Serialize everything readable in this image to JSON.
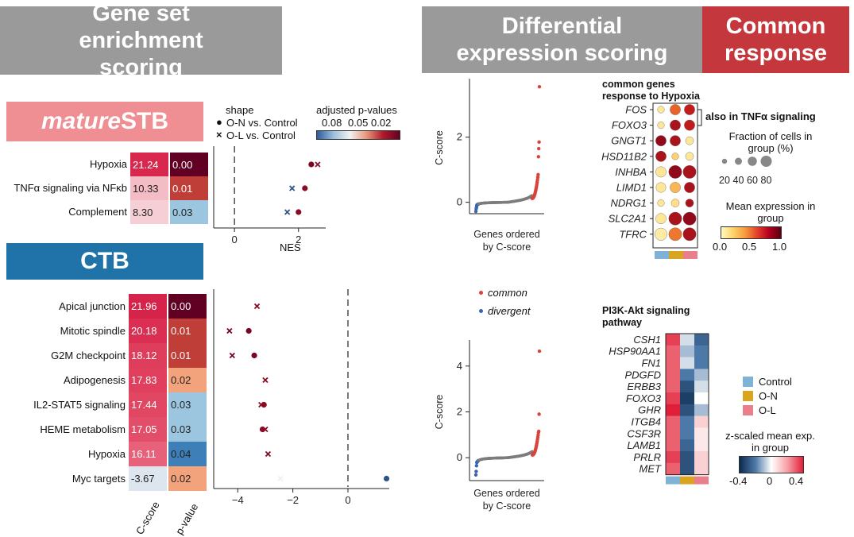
{
  "banners": {
    "gsea": "Gene set enrichment scoring",
    "diffexp": "Differential expression scoring",
    "common": "Common response",
    "mature_italic": "mature",
    "mature_rest": "STB",
    "ctb": "CTB"
  },
  "colors": {
    "banner_gray": "#9a9a9a",
    "banner_red": "#c4373c",
    "mature_pink": "#ef8e93",
    "ctb_blue": "#1f73a8",
    "common_dot": "#d9433b",
    "divergent_dot": "#3b63b0",
    "control": "#7fb3d5",
    "on": "#d9a520",
    "ol": "#e97f8a"
  },
  "legend_top": {
    "shape_title": "shape",
    "shape_items": [
      "O-N vs. Control",
      "O-L vs. Control"
    ],
    "pval_title": "adjusted p-values",
    "pval_ticks": [
      "0.08",
      "0.05",
      "0.02"
    ]
  },
  "chart_data": [
    {
      "type": "table",
      "name": "matureSTB heatmap",
      "rows": [
        "Hypoxia",
        "TNFα signaling via NFκb",
        "Complement"
      ],
      "c_score": [
        21.24,
        10.33,
        8.3
      ],
      "c_score_text": [
        "21.24",
        "10.33",
        "8.30"
      ],
      "p_value": [
        0.0,
        0.01,
        0.03
      ],
      "p_value_text": [
        "0.00",
        "0.01",
        "0.03"
      ]
    },
    {
      "type": "scatter",
      "name": "matureSTB NES",
      "xlabel": "NES",
      "xlim": [
        -0.5,
        2.85
      ],
      "xticks": [
        0,
        2
      ],
      "categories": [
        "Hypoxia",
        "TNFα signaling via NFκb",
        "Complement"
      ],
      "series": [
        {
          "name": "O-N vs. Control",
          "marker": "circle",
          "values": [
            2.4,
            2.2,
            2.0
          ],
          "padj": [
            0.015,
            0.02,
            0.02
          ]
        },
        {
          "name": "O-L vs. Control",
          "marker": "x",
          "values": [
            2.6,
            1.8,
            1.65
          ],
          "padj": [
            0.02,
            0.09,
            0.09
          ]
        }
      ]
    },
    {
      "type": "table",
      "name": "CTB heatmap",
      "rows": [
        "Apical junction",
        "Mitotic spindle",
        "G2M checkpoint",
        "Adipogenesis",
        "IL2-STAT5 signaling",
        "HEME metabolism",
        "Hypoxia",
        "Myc targets"
      ],
      "c_score": [
        21.96,
        20.18,
        18.12,
        17.83,
        17.44,
        17.05,
        16.11,
        -3.67
      ],
      "c_score_text": [
        "21.96",
        "20.18",
        "18.12",
        "17.83",
        "17.44",
        "17.05",
        "16.11",
        "-3.67"
      ],
      "p_value": [
        0.0,
        0.01,
        0.01,
        0.02,
        0.03,
        0.03,
        0.04,
        0.02
      ],
      "p_value_text": [
        "0.00",
        "0.01",
        "0.01",
        "0.02",
        "0.03",
        "0.03",
        "0.04",
        "0.02"
      ],
      "xlabels": [
        "C-score",
        "p-value"
      ]
    },
    {
      "type": "scatter",
      "name": "CTB NES",
      "xlim": [
        -4.7,
        1.5
      ],
      "xticks": [
        -4,
        -2,
        0
      ],
      "xtick_labels": [
        "−4",
        "−2",
        "0"
      ],
      "categories": [
        "Apical junction",
        "Mitotic spindle",
        "G2M checkpoint",
        "Adipogenesis",
        "IL2-STAT5 signaling",
        "HEME metabolism",
        "Hypoxia",
        "Myc targets"
      ],
      "series": [
        {
          "name": "O-N vs. Control",
          "marker": "circle",
          "values": [
            null,
            -3.6,
            -3.4,
            null,
            -3.05,
            -3.1,
            null,
            1.4
          ],
          "padj": [
            null,
            0.015,
            0.015,
            null,
            0.02,
            0.02,
            null,
            0.09
          ]
        },
        {
          "name": "O-L vs. Control",
          "marker": "x",
          "values": [
            -3.3,
            -4.3,
            -4.2,
            -3.0,
            -3.15,
            -3.0,
            -2.9,
            -2.45
          ],
          "padj": [
            0.02,
            0.015,
            0.015,
            0.02,
            0.02,
            0.02,
            0.02,
            0.06
          ]
        }
      ]
    },
    {
      "type": "scatter",
      "name": "Differential expression top",
      "ylabel": "C-score",
      "xlabel": "Genes ordered by C-score",
      "ylim": [
        -0.35,
        3.7
      ],
      "yticks": [
        0,
        2
      ],
      "n_genes": 200,
      "series": [
        {
          "name": "common",
          "y_top": [
            3.55,
            1.85,
            1.65,
            1.4
          ],
          "y_cluster_max": 0.85
        },
        {
          "name": "divergent",
          "y_bottom": [
            -0.28,
            -0.2,
            -0.15
          ]
        }
      ]
    },
    {
      "type": "scatter",
      "name": "Differential expression bottom",
      "ylabel": "C-score",
      "xlabel": "Genes ordered by C-score",
      "ylim": [
        -1.0,
        5.0
      ],
      "yticks": [
        0,
        2,
        4
      ],
      "n_genes": 200,
      "series": [
        {
          "name": "common",
          "y_top": [
            4.65,
            1.9,
            1.15
          ],
          "y_cluster_max": 1.1
        },
        {
          "name": "divergent",
          "y_bottom": [
            -0.75,
            -0.6,
            -0.35
          ]
        }
      ]
    },
    {
      "type": "heatmap",
      "name": "Common genes response to Hypoxia (dotplot)",
      "title": "common genes response to Hypoxia",
      "rows": [
        "FOS",
        "FOXO3",
        "GNGT1",
        "HSD11B2",
        "INHBA",
        "LIMD1",
        "NDRG1",
        "SLC2A1",
        "TFRC"
      ],
      "columns": [
        "Control",
        "O-N",
        "O-L"
      ],
      "bracket_label": "also in TNFα signaling",
      "bracket_rows": [
        "FOS",
        "FOXO3"
      ],
      "fraction": [
        [
          30,
          60,
          60
        ],
        [
          30,
          60,
          60
        ],
        [
          60,
          60,
          40
        ],
        [
          60,
          30,
          40
        ],
        [
          60,
          80,
          80
        ],
        [
          55,
          60,
          60
        ],
        [
          30,
          40,
          40
        ],
        [
          60,
          80,
          80
        ],
        [
          75,
          80,
          80
        ]
      ],
      "mean_expr": [
        [
          0.15,
          0.65,
          0.85
        ],
        [
          0.15,
          0.9,
          0.85
        ],
        [
          0.95,
          0.9,
          0.15
        ],
        [
          0.9,
          0.3,
          0.15
        ],
        [
          0.15,
          0.95,
          0.9
        ],
        [
          0.15,
          0.4,
          0.9
        ],
        [
          0.15,
          0.2,
          0.9
        ],
        [
          0.15,
          0.9,
          0.95
        ],
        [
          0.1,
          0.6,
          0.9
        ]
      ],
      "size_legend": {
        "title": "Fraction of cells in group (%)",
        "values": [
          20,
          40,
          60,
          80
        ],
        "labels": [
          "20",
          "40",
          "60",
          "80"
        ]
      },
      "color_legend": {
        "title": "Mean expression in group",
        "range": [
          0.0,
          1.0
        ],
        "ticks": [
          "0.0",
          "0.5",
          "1.0"
        ]
      }
    },
    {
      "type": "heatmap",
      "name": "PI3K-Akt signaling pathway",
      "title": "PI3K-Akt signaling pathway",
      "rows": [
        "CSH1",
        "HSP90AA1",
        "FN1",
        "PDGFD",
        "ERBB3",
        "FOXO3",
        "GHR",
        "ITGB4",
        "CSF3R",
        "LAMB1",
        "PRLR",
        "MET"
      ],
      "columns": [
        "Control",
        "O-N",
        "O-L"
      ],
      "values": [
        [
          0.35,
          -0.05,
          -0.25
        ],
        [
          0.3,
          -0.1,
          -0.2
        ],
        [
          0.3,
          -0.05,
          -0.2
        ],
        [
          0.3,
          -0.2,
          -0.1
        ],
        [
          0.3,
          -0.3,
          -0.05
        ],
        [
          0.35,
          -0.35,
          0.0
        ],
        [
          0.4,
          -0.3,
          -0.1
        ],
        [
          0.3,
          -0.2,
          0.1
        ],
        [
          0.3,
          -0.2,
          0.05
        ],
        [
          0.3,
          -0.25,
          0.05
        ],
        [
          0.35,
          -0.3,
          0.1
        ],
        [
          0.3,
          -0.3,
          0.1
        ]
      ],
      "legend_groups": [
        "Control",
        "O-N",
        "O-L"
      ],
      "color_legend": {
        "title": "z-scaled mean exp. in group",
        "range": [
          -0.4,
          0.4
        ],
        "ticks": [
          "-0.4",
          "0",
          "0.4"
        ]
      }
    }
  ]
}
